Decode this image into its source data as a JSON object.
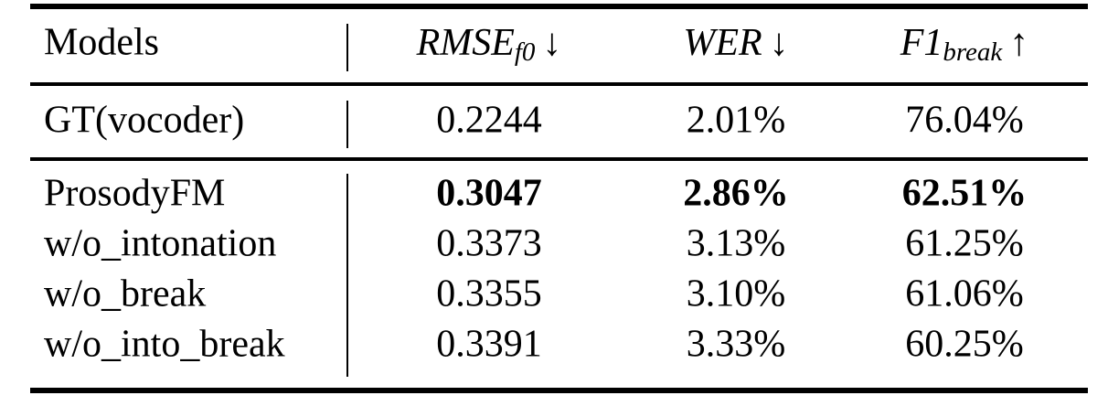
{
  "header": {
    "models": "Models",
    "columns": [
      {
        "name": "RMSE",
        "sub": "f0",
        "arrow": "↓"
      },
      {
        "name": "WER",
        "arrow": "↓"
      },
      {
        "name": "F1",
        "sub": "break",
        "arrow": "↑"
      }
    ]
  },
  "table": {
    "groups": [
      [
        [
          "GT(vocoder)",
          "0.2244",
          "2.01%",
          "76.04%"
        ]
      ],
      [
        [
          "ProsodyFM",
          "0.3047",
          "2.86%",
          "62.51%"
        ],
        [
          "w/o_intonation",
          "0.3373",
          "3.13%",
          "61.25%"
        ],
        [
          "w/o_break",
          "0.3355",
          "3.10%",
          "61.06%"
        ],
        [
          "w/o_into_break",
          "0.3391",
          "3.33%",
          "60.25%"
        ]
      ]
    ]
  }
}
